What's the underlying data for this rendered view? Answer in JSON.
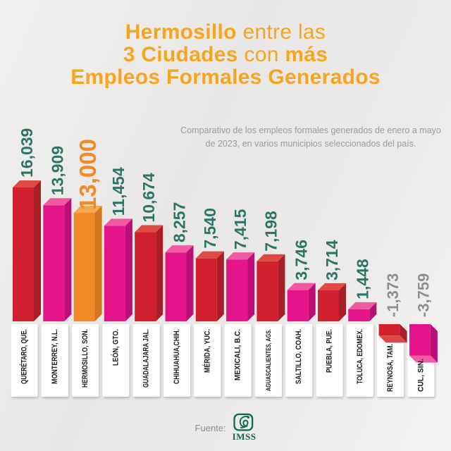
{
  "title": {
    "color": "#F7A51D",
    "l1_strong": "Hermosillo",
    "l1_light": "entre las",
    "l2_strong": "3 Ciudades",
    "l2_light": "con",
    "l2_strong2": "más",
    "l3_strong": "Empleos Formales Generados"
  },
  "subtitle": {
    "text": "Comparativo de los empleos formales generados de enero a mayo de 2023, en varios municipios seleccionados del país.",
    "color": "#9C9C9C"
  },
  "footer": {
    "source_label": "Fuente:",
    "source_name": "IMSS",
    "logo_icon": "imss-eagle-icon",
    "logo_color": "#0E6A4E"
  },
  "chart_data": {
    "type": "bar",
    "title": "Hermosillo entre las 3 Ciudades con más Empleos Formales Generados",
    "subtitle": "Comparativo de los empleos formales generados de enero a mayo de 2023, en varios municipios seleccionados del país.",
    "categories": [
      "QUERÉTARO, QUE.",
      "MONTERREY, N.L.",
      "HERMOSILLO, SON.",
      "LEÓN, GTO.",
      "GUADALAJARA JAL.",
      "CHIHUAHUA,CHIH.",
      "MÉRIDA, YUC.",
      "MEXICALI, B.C.",
      "AGUASCALIENTES, AGS.",
      "SALTILLO, COAH.",
      "PUEBLA, PUE.",
      "TOLUCA, EDOMEX.",
      "REYNOSA, TAM.",
      "CUL, SIN."
    ],
    "values": [
      16039,
      13909,
      13000,
      11454,
      10674,
      8257,
      7540,
      7415,
      7198,
      3746,
      3714,
      1448,
      -1373,
      -3759
    ],
    "value_labels": [
      "16,039",
      "13,909",
      "13,000",
      "11,454",
      "10,674",
      "8,257",
      "7,540",
      "7,415",
      "7,198",
      "3,746",
      "3,714",
      "1,448",
      "-1,373",
      "-3,759"
    ],
    "bar_colors": [
      "red",
      "magenta",
      "orange",
      "magenta",
      "red",
      "magenta",
      "red",
      "magenta",
      "red",
      "magenta",
      "red",
      "magenta",
      "red",
      "magenta"
    ],
    "highlight_index": 2,
    "ylim": [
      -3759,
      16039
    ],
    "grid": false,
    "legend": false,
    "bar_style": "3d",
    "palette": {
      "red": {
        "front": "#D0202D",
        "light": "#DF4B44",
        "dark": "#A81E29"
      },
      "magenta": {
        "front": "#E6148B",
        "light": "#F159A3",
        "dark": "#BC0F76"
      },
      "orange": {
        "front": "#F18A27",
        "light": "#F6A751",
        "dark": "#D4761B"
      }
    },
    "value_label_color": "#2B7466",
    "negative_label_color": "#8E8E8E",
    "highlight_label_color": "#F18A27",
    "category_label_color": "#1A1A1A",
    "category_box_color": "#FFFFFF"
  }
}
